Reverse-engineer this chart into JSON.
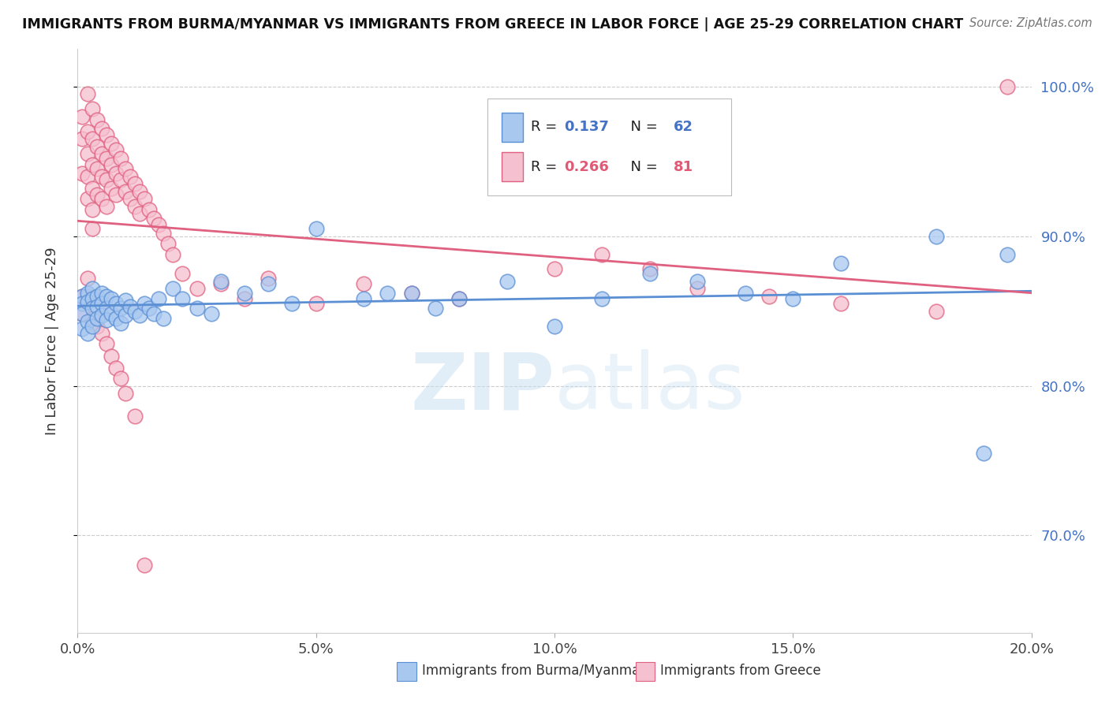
{
  "title": "IMMIGRANTS FROM BURMA/MYANMAR VS IMMIGRANTS FROM GREECE IN LABOR FORCE | AGE 25-29 CORRELATION CHART",
  "source": "Source: ZipAtlas.com",
  "ylabel": "In Labor Force | Age 25-29",
  "legend_label_blue": "Immigrants from Burma/Myanmar",
  "legend_label_pink": "Immigrants from Greece",
  "R_blue": 0.137,
  "N_blue": 62,
  "R_pink": 0.266,
  "N_pink": 81,
  "xlim": [
    0.0,
    0.2
  ],
  "ylim": [
    0.635,
    1.025
  ],
  "xtick_labels": [
    "0.0%",
    "5.0%",
    "10.0%",
    "15.0%",
    "20.0%"
  ],
  "xtick_vals": [
    0.0,
    0.05,
    0.1,
    0.15,
    0.2
  ],
  "ytick_vals": [
    0.7,
    0.8,
    0.9,
    1.0
  ],
  "right_ytick_labels": [
    "70.0%",
    "80.0%",
    "90.0%",
    "100.0%"
  ],
  "color_blue": "#a8c8f0",
  "color_blue_edge": "#5b8fd4",
  "color_pink": "#f5c0d0",
  "color_pink_edge": "#e06080",
  "color_blue_line": "#5b8fd4",
  "color_pink_line": "#e06080",
  "color_blue_text": "#4472c4",
  "color_pink_text": "#e05a75",
  "watermark_zip": "ZIP",
  "watermark_atlas": "atlas",
  "blue_x": [
    0.001,
    0.001,
    0.001,
    0.001,
    0.002,
    0.002,
    0.002,
    0.002,
    0.003,
    0.003,
    0.003,
    0.003,
    0.004,
    0.004,
    0.004,
    0.005,
    0.005,
    0.005,
    0.006,
    0.006,
    0.006,
    0.007,
    0.007,
    0.008,
    0.008,
    0.009,
    0.009,
    0.01,
    0.01,
    0.011,
    0.012,
    0.013,
    0.014,
    0.015,
    0.016,
    0.017,
    0.018,
    0.02,
    0.022,
    0.025,
    0.028,
    0.03,
    0.035,
    0.04,
    0.045,
    0.05,
    0.06,
    0.07,
    0.08,
    0.09,
    0.1,
    0.11,
    0.12,
    0.13,
    0.14,
    0.15,
    0.16,
    0.18,
    0.19,
    0.195,
    0.065,
    0.075
  ],
  "blue_y": [
    0.86,
    0.855,
    0.848,
    0.838,
    0.862,
    0.856,
    0.843,
    0.835,
    0.865,
    0.858,
    0.852,
    0.84,
    0.86,
    0.853,
    0.845,
    0.862,
    0.855,
    0.847,
    0.86,
    0.852,
    0.844,
    0.858,
    0.848,
    0.855,
    0.845,
    0.852,
    0.842,
    0.857,
    0.847,
    0.853,
    0.85,
    0.847,
    0.855,
    0.852,
    0.848,
    0.858,
    0.845,
    0.865,
    0.858,
    0.852,
    0.848,
    0.87,
    0.862,
    0.868,
    0.855,
    0.905,
    0.858,
    0.862,
    0.858,
    0.87,
    0.84,
    0.858,
    0.875,
    0.87,
    0.862,
    0.858,
    0.882,
    0.9,
    0.755,
    0.888,
    0.862,
    0.852
  ],
  "pink_x": [
    0.001,
    0.001,
    0.001,
    0.002,
    0.002,
    0.002,
    0.002,
    0.002,
    0.003,
    0.003,
    0.003,
    0.003,
    0.003,
    0.003,
    0.004,
    0.004,
    0.004,
    0.004,
    0.005,
    0.005,
    0.005,
    0.005,
    0.006,
    0.006,
    0.006,
    0.006,
    0.007,
    0.007,
    0.007,
    0.008,
    0.008,
    0.008,
    0.009,
    0.009,
    0.01,
    0.01,
    0.011,
    0.011,
    0.012,
    0.012,
    0.013,
    0.013,
    0.014,
    0.015,
    0.016,
    0.017,
    0.018,
    0.019,
    0.02,
    0.022,
    0.025,
    0.03,
    0.035,
    0.04,
    0.05,
    0.06,
    0.07,
    0.08,
    0.1,
    0.11,
    0.12,
    0.13,
    0.145,
    0.16,
    0.18,
    0.195,
    0.001,
    0.001,
    0.002,
    0.002,
    0.003,
    0.003,
    0.004,
    0.005,
    0.006,
    0.007,
    0.008,
    0.009,
    0.01,
    0.012,
    0.014
  ],
  "pink_y": [
    0.98,
    0.965,
    0.942,
    0.995,
    0.97,
    0.955,
    0.94,
    0.925,
    0.985,
    0.965,
    0.948,
    0.932,
    0.918,
    0.905,
    0.978,
    0.96,
    0.945,
    0.928,
    0.972,
    0.955,
    0.94,
    0.925,
    0.968,
    0.952,
    0.938,
    0.92,
    0.962,
    0.948,
    0.932,
    0.958,
    0.942,
    0.928,
    0.952,
    0.938,
    0.945,
    0.93,
    0.94,
    0.925,
    0.935,
    0.92,
    0.93,
    0.915,
    0.925,
    0.918,
    0.912,
    0.908,
    0.902,
    0.895,
    0.888,
    0.875,
    0.865,
    0.868,
    0.858,
    0.872,
    0.855,
    0.868,
    0.862,
    0.858,
    0.878,
    0.888,
    0.878,
    0.865,
    0.86,
    0.855,
    0.85,
    1.0,
    0.86,
    0.848,
    0.872,
    0.86,
    0.858,
    0.845,
    0.84,
    0.835,
    0.828,
    0.82,
    0.812,
    0.805,
    0.795,
    0.78,
    0.68
  ]
}
